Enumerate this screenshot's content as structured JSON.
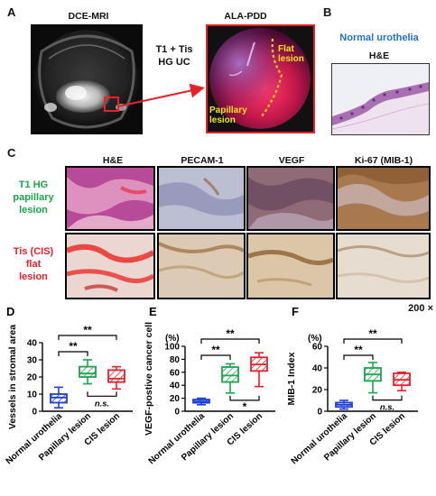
{
  "panelA": {
    "letter": "A",
    "dce_title": "DCE-MRI",
    "alapdd_title": "ALA-PDD",
    "stage_line1": "T1 + Tis",
    "stage_line2": "HG UC",
    "flat_line1": "Flat",
    "flat_line2": "lesion",
    "pap_line1": "Papillary",
    "pap_line2": "lesion",
    "colors": {
      "highlight": "#e8202a",
      "dashed": "#f2d21b",
      "label": "#f5e51c"
    }
  },
  "panelB": {
    "letter": "B",
    "title": "Normal urothelia",
    "stain": "H&E",
    "colors": {
      "title": "#1f73c9"
    }
  },
  "panelC": {
    "letter": "C",
    "columns": [
      "H&E",
      "PECAM-1",
      "VEGF",
      "Ki-67 (MIB-1)"
    ],
    "row1_line1": "T1 HG",
    "row1_line2": "papillary",
    "row1_line3": "lesion",
    "row2_line1": "Tis (CIS)",
    "row2_line2": "flat",
    "row2_line3": "lesion",
    "magnification": "200 ×",
    "colors": {
      "row1": "#1aa64a",
      "row2": "#e8202a"
    }
  },
  "chart_data": [
    {
      "type": "box",
      "panel": "D",
      "ylabel": "Vessels in stromal area",
      "ylim": [
        0,
        40
      ],
      "yticks": [
        0,
        10,
        20,
        30,
        40
      ],
      "categories": [
        "Normal urothelia",
        "Papillary lesion",
        "CIS lesion"
      ],
      "boxes": [
        {
          "min": 2,
          "q1": 5,
          "median": 8,
          "q3": 10,
          "max": 14
        },
        {
          "min": 16,
          "q1": 20,
          "median": 22,
          "q3": 26,
          "max": 30
        },
        {
          "min": 13,
          "q1": 17,
          "median": 19,
          "q3": 24,
          "max": 26
        }
      ],
      "annotations": [
        {
          "text": "**",
          "from": 0,
          "to": 1
        },
        {
          "text": "**",
          "from": 0,
          "to": 2
        },
        {
          "text": "n.s.",
          "from": 1,
          "to": 2
        }
      ],
      "colors": [
        "#1f3fd9",
        "#1aa64a",
        "#e8202a"
      ]
    },
    {
      "type": "box",
      "panel": "E",
      "ylabel": "VEGF-postive cancer cell",
      "yunit": "(%)",
      "ylim": [
        0,
        100
      ],
      "yticks": [
        0,
        20,
        40,
        60,
        80,
        100
      ],
      "categories": [
        "Normal urothelia",
        "Papillary lesion",
        "CIS lesion"
      ],
      "boxes": [
        {
          "min": 10,
          "q1": 13,
          "median": 15,
          "q3": 18,
          "max": 20
        },
        {
          "min": 28,
          "q1": 45,
          "median": 55,
          "q3": 68,
          "max": 73
        },
        {
          "min": 38,
          "q1": 62,
          "median": 72,
          "q3": 83,
          "max": 90
        }
      ],
      "annotations": [
        {
          "text": "**",
          "from": 0,
          "to": 1
        },
        {
          "text": "**",
          "from": 0,
          "to": 2
        },
        {
          "text": "*",
          "from": 1,
          "to": 2
        }
      ],
      "colors": [
        "#1f3fd9",
        "#1aa64a",
        "#e8202a"
      ]
    },
    {
      "type": "box",
      "panel": "F",
      "ylabel": "MIB-1 Index",
      "yunit": "(%)",
      "ylim": [
        0,
        60
      ],
      "yticks": [
        0,
        20,
        40,
        60
      ],
      "categories": [
        "Normal urothelia",
        "Papillary lesion",
        "CIS lesion"
      ],
      "boxes": [
        {
          "min": 2,
          "q1": 4,
          "median": 6,
          "q3": 8,
          "max": 10
        },
        {
          "min": 17,
          "q1": 28,
          "median": 34,
          "q3": 40,
          "max": 45
        },
        {
          "min": 19,
          "q1": 24,
          "median": 29,
          "q3": 35,
          "max": 36
        }
      ],
      "annotations": [
        {
          "text": "**",
          "from": 0,
          "to": 1
        },
        {
          "text": "**",
          "from": 0,
          "to": 2
        },
        {
          "text": "n.s.",
          "from": 1,
          "to": 2
        }
      ],
      "colors": [
        "#1f3fd9",
        "#1aa64a",
        "#e8202a"
      ]
    }
  ]
}
